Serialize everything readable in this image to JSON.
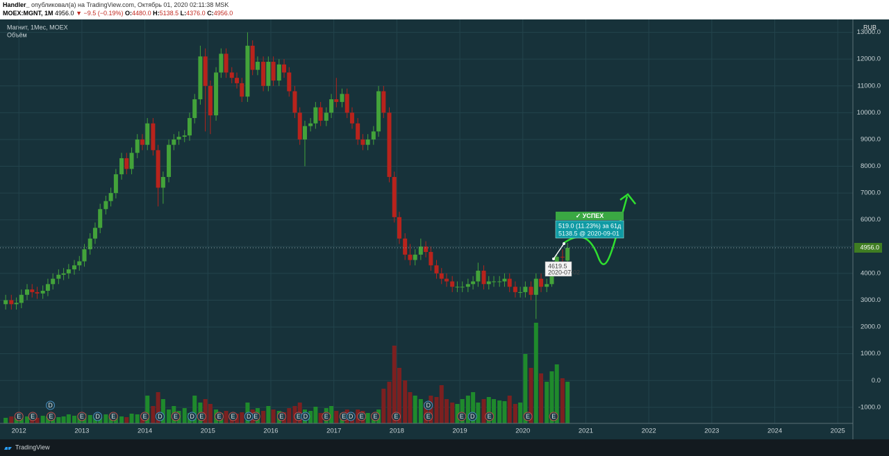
{
  "header": {
    "author": "Handler_",
    "published": "опубликовал(а) на TradingView.com, Октябрь 01, 2020 02:11:38 MSK",
    "symbol": "MOEX:MGNT, 1M",
    "last": "4956.0",
    "change": "▼ −9.5 (−0.19%)",
    "o_label": "O:",
    "o": "4480.0",
    "h_label": "H:",
    "h": "5138.5",
    "l_label": "L:",
    "l": "4376.0",
    "c_label": "C:",
    "c": "4956.0"
  },
  "footer": {
    "brand": "TradingView"
  },
  "chart_data": {
    "type": "candlestick",
    "title": "Магнит, 1Мес, MOEX",
    "volume_title": "Объём",
    "currency": "RUB",
    "last_price_label": "4956.0",
    "colors": {
      "up": "#43a33a",
      "down": "#b8231c",
      "volume_up": "#1f8a2c",
      "volume_down": "#7c2020"
    },
    "grid": true,
    "xlim": [
      2011.7,
      2025.24
    ],
    "xticks": [
      2012,
      2013,
      2014,
      2015,
      2016,
      2017,
      2018,
      2019,
      2020,
      2021,
      2022,
      2023,
      2024,
      2025
    ],
    "ylim": [
      -1600,
      13300
    ],
    "yticks": [
      {
        "value": -1000,
        "label": "-1000.0"
      },
      {
        "value": 0,
        "label": "0.0"
      },
      {
        "value": 1000,
        "label": "1000.0"
      },
      {
        "value": 2000,
        "label": "2000.0"
      },
      {
        "value": 3000,
        "label": "3000.0"
      },
      {
        "value": 4000,
        "label": "4000.0"
      },
      {
        "value": 5000,
        "label": "5000.0"
      },
      {
        "value": 6000,
        "label": "6000.0"
      },
      {
        "value": 7000,
        "label": "7000.0"
      },
      {
        "value": 8000,
        "label": "8000.0"
      },
      {
        "value": 9000,
        "label": "9000.0"
      },
      {
        "value": 10000,
        "label": "10000.0"
      },
      {
        "value": 11000,
        "label": "11000.0"
      },
      {
        "value": 12000,
        "label": "12000.0"
      },
      {
        "value": 13000,
        "label": "13000.0"
      }
    ],
    "x": [
      2011.79,
      2011.88,
      2011.96,
      2012.04,
      2012.13,
      2012.21,
      2012.29,
      2012.38,
      2012.46,
      2012.54,
      2012.63,
      2012.71,
      2012.79,
      2012.88,
      2012.96,
      2013.04,
      2013.13,
      2013.21,
      2013.29,
      2013.38,
      2013.46,
      2013.54,
      2013.63,
      2013.71,
      2013.79,
      2013.88,
      2013.96,
      2014.04,
      2014.13,
      2014.21,
      2014.29,
      2014.38,
      2014.46,
      2014.54,
      2014.63,
      2014.71,
      2014.79,
      2014.88,
      2014.96,
      2015.04,
      2015.13,
      2015.21,
      2015.29,
      2015.38,
      2015.46,
      2015.54,
      2015.63,
      2015.71,
      2015.79,
      2015.88,
      2015.96,
      2016.04,
      2016.13,
      2016.21,
      2016.29,
      2016.38,
      2016.46,
      2016.54,
      2016.63,
      2016.71,
      2016.79,
      2016.88,
      2016.96,
      2017.04,
      2017.13,
      2017.21,
      2017.29,
      2017.38,
      2017.46,
      2017.54,
      2017.63,
      2017.71,
      2017.79,
      2017.88,
      2017.96,
      2018.04,
      2018.13,
      2018.21,
      2018.29,
      2018.38,
      2018.46,
      2018.54,
      2018.63,
      2018.71,
      2018.79,
      2018.88,
      2018.96,
      2019.04,
      2019.13,
      2019.21,
      2019.29,
      2019.38,
      2019.46,
      2019.54,
      2019.63,
      2019.71,
      2019.79,
      2019.88,
      2019.96,
      2020.04,
      2020.13,
      2020.21,
      2020.29,
      2020.38,
      2020.46,
      2020.54,
      2020.63,
      2020.71
    ],
    "open": [
      2850,
      3000,
      2850,
      2900,
      3200,
      3400,
      3300,
      3250,
      3350,
      3600,
      3800,
      3950,
      4000,
      4150,
      4300,
      4450,
      4900,
      5300,
      5700,
      6400,
      6700,
      7000,
      7700,
      8300,
      7900,
      8500,
      9000,
      8800,
      9600,
      8600,
      7200,
      7600,
      8800,
      9000,
      9100,
      9150,
      9800,
      10500,
      12100,
      11000,
      9900,
      11500,
      12200,
      11500,
      11300,
      11100,
      10600,
      12500,
      11600,
      11900,
      11000,
      11900,
      11200,
      11800,
      11500,
      10800,
      10000,
      9000,
      9500,
      9600,
      10200,
      9700,
      10000,
      10500,
      10400,
      10700,
      10000,
      9600,
      9000,
      8800,
      9000,
      9300,
      10800,
      10000,
      7600,
      6100,
      5300,
      4700,
      4500,
      4700,
      5000,
      4800,
      4300,
      4000,
      3800,
      3700,
      3500,
      3500,
      3500,
      3600,
      3700,
      4100,
      3600,
      3700,
      3700,
      3700,
      3800,
      3500,
      3300,
      3300,
      3500,
      3200,
      3800,
      3500,
      3600,
      4200,
      4620,
      4480
    ],
    "high": [
      3200,
      3200,
      3100,
      3400,
      3600,
      3600,
      3500,
      3550,
      3800,
      4000,
      4150,
      4200,
      4350,
      4500,
      4650,
      5100,
      5500,
      5900,
      6600,
      6900,
      7200,
      7900,
      8500,
      8500,
      8700,
      9200,
      9200,
      9800,
      9800,
      8800,
      7800,
      9000,
      9200,
      9300,
      9350,
      10000,
      10700,
      12500,
      12400,
      11200,
      11700,
      12400,
      12400,
      11700,
      11500,
      11300,
      13000,
      12700,
      12100,
      12100,
      12100,
      12100,
      12000,
      12000,
      11700,
      11000,
      10200,
      9700,
      9800,
      10400,
      10400,
      10200,
      10700,
      11300,
      10900,
      10900,
      10200,
      9800,
      9200,
      9200,
      9500,
      11000,
      11000,
      10200,
      7800,
      6300,
      5500,
      5100,
      4900,
      5300,
      5200,
      5000,
      4500,
      4200,
      4000,
      3900,
      3700,
      3700,
      3800,
      3900,
      4400,
      4300,
      3900,
      3900,
      3900,
      4000,
      4000,
      3700,
      3500,
      3700,
      3700,
      4000,
      4000,
      3800,
      4300,
      4700,
      4900,
      5138.5
    ],
    "low": [
      2650,
      2650,
      2650,
      2700,
      3000,
      3100,
      3050,
      3050,
      3150,
      3400,
      3600,
      3750,
      3800,
      3950,
      4100,
      4250,
      4700,
      5100,
      5500,
      6200,
      6500,
      6800,
      7500,
      7700,
      7700,
      8300,
      8600,
      8600,
      8400,
      6500,
      6600,
      7400,
      8600,
      8800,
      8900,
      8950,
      9600,
      10300,
      9300,
      9200,
      9700,
      11300,
      11300,
      11100,
      10900,
      10400,
      10400,
      11400,
      11400,
      10800,
      10800,
      11000,
      11000,
      11300,
      10600,
      9800,
      8800,
      8000,
      9300,
      9400,
      9500,
      9500,
      9800,
      10200,
      10200,
      9800,
      9400,
      8800,
      8600,
      8600,
      8800,
      9100,
      9800,
      7400,
      5900,
      5100,
      4500,
      4300,
      4300,
      4500,
      4600,
      4100,
      3800,
      3600,
      3500,
      3300,
      3300,
      3300,
      3300,
      3400,
      3500,
      3400,
      3400,
      3500,
      3500,
      3500,
      3300,
      3100,
      3100,
      3100,
      3000,
      2300,
      3300,
      3300,
      3500,
      4100,
      4400,
      4376
    ],
    "close": [
      3000,
      2850,
      2900,
      3200,
      3400,
      3300,
      3250,
      3350,
      3600,
      3800,
      3950,
      4000,
      4150,
      4300,
      4450,
      4900,
      5300,
      5700,
      6400,
      6700,
      7000,
      7700,
      8300,
      7900,
      8500,
      9000,
      8800,
      9600,
      8600,
      7200,
      7600,
      8800,
      9000,
      9100,
      9150,
      9800,
      10500,
      12100,
      11000,
      9900,
      11500,
      12200,
      11500,
      11300,
      11100,
      10600,
      12500,
      11600,
      11900,
      11000,
      11900,
      11200,
      11800,
      11500,
      10800,
      10000,
      9000,
      9500,
      9600,
      10200,
      9700,
      10000,
      10500,
      10400,
      10700,
      10000,
      9600,
      9000,
      8800,
      9000,
      9300,
      10800,
      10000,
      7600,
      6100,
      5300,
      4700,
      4500,
      4700,
      5000,
      4800,
      4300,
      4000,
      3800,
      3700,
      3500,
      3500,
      3500,
      3600,
      3700,
      4100,
      3600,
      3700,
      3700,
      3700,
      3800,
      3500,
      3300,
      3300,
      3500,
      3200,
      3800,
      3500,
      3600,
      4200,
      4620,
      4600,
      4956
    ],
    "volume": [
      8,
      10,
      9,
      12,
      10,
      9,
      8,
      11,
      10,
      12,
      9,
      10,
      13,
      11,
      12,
      14,
      12,
      10,
      9,
      13,
      11,
      12,
      10,
      9,
      14,
      13,
      12,
      40,
      25,
      45,
      35,
      20,
      25,
      18,
      22,
      15,
      40,
      30,
      35,
      28,
      20,
      15,
      18,
      15,
      14,
      16,
      30,
      20,
      22,
      18,
      25,
      20,
      18,
      16,
      22,
      25,
      30,
      20,
      18,
      24,
      15,
      22,
      25,
      18,
      15,
      20,
      16,
      20,
      18,
      15,
      14,
      20,
      50,
      60,
      112,
      80,
      62,
      45,
      40,
      35,
      30,
      40,
      38,
      55,
      35,
      30,
      28,
      35,
      40,
      45,
      30,
      35,
      38,
      35,
      33,
      32,
      40,
      28,
      30,
      100,
      80,
      145,
      72,
      60,
      75,
      85,
      65,
      60
    ],
    "events": [
      {
        "x": 2012.0,
        "label": "E"
      },
      {
        "x": 2012.22,
        "label": "E"
      },
      {
        "x": 2012.51,
        "label": "E"
      },
      {
        "x": 2013.0,
        "label": "E"
      },
      {
        "x": 2013.5,
        "label": "E"
      },
      {
        "x": 2014.0,
        "label": "E"
      },
      {
        "x": 2014.49,
        "label": "E"
      },
      {
        "x": 2014.9,
        "label": "E"
      },
      {
        "x": 2015.18,
        "label": "E"
      },
      {
        "x": 2015.4,
        "label": "E"
      },
      {
        "x": 2015.76,
        "label": "E"
      },
      {
        "x": 2016.17,
        "label": "E"
      },
      {
        "x": 2016.44,
        "label": "E"
      },
      {
        "x": 2016.88,
        "label": "E"
      },
      {
        "x": 2017.16,
        "label": "E"
      },
      {
        "x": 2017.44,
        "label": "E"
      },
      {
        "x": 2017.66,
        "label": "E"
      },
      {
        "x": 2017.99,
        "label": "E"
      },
      {
        "x": 2018.5,
        "label": "E"
      },
      {
        "x": 2019.03,
        "label": "E"
      },
      {
        "x": 2019.47,
        "label": "E"
      },
      {
        "x": 2020.08,
        "label": "E"
      },
      {
        "x": 2020.49,
        "label": "E"
      },
      {
        "x": 2012.5,
        "label": "D"
      },
      {
        "x": 2013.25,
        "label": "D"
      },
      {
        "x": 2014.24,
        "label": "D"
      },
      {
        "x": 2014.75,
        "label": "D"
      },
      {
        "x": 2015.65,
        "label": "D"
      },
      {
        "x": 2016.55,
        "label": "D"
      },
      {
        "x": 2017.27,
        "label": "D"
      },
      {
        "x": 2018.5,
        "label": "D"
      },
      {
        "x": 2019.2,
        "label": "D"
      }
    ],
    "annotations": {
      "status": "✓ УСПЕХ",
      "gain": "519.0 (11.23%) за 61д",
      "target": "5138.5 @ 2020-09-01",
      "entry_price": "4619.5",
      "entry_date": "2020-07-02"
    }
  }
}
